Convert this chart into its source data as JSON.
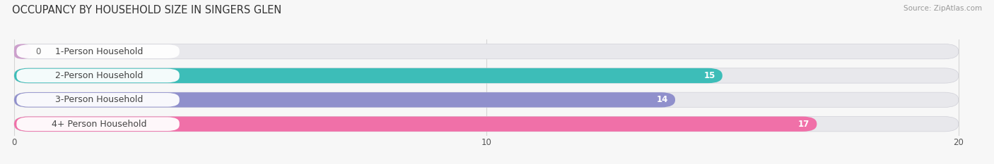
{
  "title": "OCCUPANCY BY HOUSEHOLD SIZE IN SINGERS GLEN",
  "source": "Source: ZipAtlas.com",
  "categories": [
    "1-Person Household",
    "2-Person Household",
    "3-Person Household",
    "4+ Person Household"
  ],
  "values": [
    0,
    15,
    14,
    17
  ],
  "bar_colors": [
    "#cca0cc",
    "#3dbdb8",
    "#9090cc",
    "#f070a8"
  ],
  "bar_bg_color": "#e8e8ec",
  "label_bg_color": "#ffffff",
  "x_max": 20,
  "xticks": [
    0,
    10,
    20
  ],
  "title_fontsize": 10.5,
  "label_fontsize": 9,
  "value_fontsize": 8.5,
  "background_color": "#f7f7f7",
  "bar_height": 0.62,
  "bar_gap": 0.38
}
